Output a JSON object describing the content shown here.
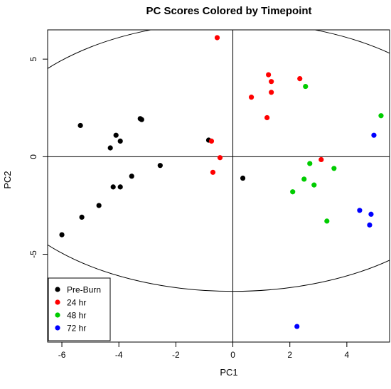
{
  "chart_data": {
    "type": "scatter",
    "title": "PC Scores Colored by Timepoint",
    "xlabel": "PC1",
    "ylabel": "PC2",
    "xlim": [
      -6.5,
      5.5
    ],
    "ylim": [
      -9.5,
      6.5
    ],
    "xticks": [
      -6,
      -4,
      -2,
      0,
      2,
      4
    ],
    "yticks": [
      -5,
      0,
      5
    ],
    "reference_lines": {
      "x": 0,
      "y": 0
    },
    "ellipse": {
      "center": [
        0,
        0
      ],
      "rx": 8.6,
      "ry": 6.9
    },
    "legend_position": "bottom-left",
    "series": [
      {
        "name": "Pre-Burn",
        "color": "#000000",
        "points": [
          [
            -6.0,
            -4.0
          ],
          [
            -5.3,
            -3.1
          ],
          [
            -5.35,
            1.6
          ],
          [
            -4.7,
            -2.5
          ],
          [
            -4.3,
            0.45
          ],
          [
            -4.1,
            1.1
          ],
          [
            -4.2,
            -1.55
          ],
          [
            -3.95,
            -1.55
          ],
          [
            -3.95,
            0.8
          ],
          [
            -3.55,
            -1.0
          ],
          [
            -3.25,
            1.95
          ],
          [
            -3.2,
            1.9
          ],
          [
            -2.55,
            -0.45
          ],
          [
            -0.85,
            0.85
          ],
          [
            0.35,
            -1.1
          ]
        ]
      },
      {
        "name": "24 hr",
        "color": "#ff0000",
        "points": [
          [
            -0.55,
            6.1
          ],
          [
            -0.75,
            0.8
          ],
          [
            -0.45,
            -0.05
          ],
          [
            -0.7,
            -0.8
          ],
          [
            0.65,
            3.05
          ],
          [
            1.2,
            2.0
          ],
          [
            1.25,
            4.2
          ],
          [
            1.35,
            3.85
          ],
          [
            1.35,
            3.3
          ],
          [
            2.35,
            4.0
          ],
          [
            3.1,
            -0.15
          ]
        ]
      },
      {
        "name": "48 hr",
        "color": "#00cc00",
        "points": [
          [
            2.55,
            3.6
          ],
          [
            5.2,
            2.1
          ],
          [
            2.7,
            -0.35
          ],
          [
            3.55,
            -0.6
          ],
          [
            2.5,
            -1.15
          ],
          [
            2.85,
            -1.45
          ],
          [
            2.1,
            -1.8
          ],
          [
            3.3,
            -3.3
          ]
        ]
      },
      {
        "name": "72 hr",
        "color": "#0000ff",
        "points": [
          [
            4.95,
            1.1
          ],
          [
            4.45,
            -2.75
          ],
          [
            4.85,
            -2.95
          ],
          [
            4.8,
            -3.5
          ],
          [
            2.25,
            -8.7
          ]
        ]
      }
    ]
  }
}
